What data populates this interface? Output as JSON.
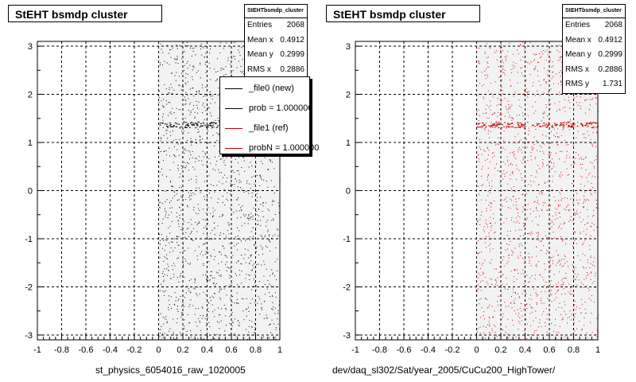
{
  "charts": [
    {
      "title": "StEHT bsmdp cluster",
      "stats": {
        "name": "StEHTbsmdp_cluster",
        "rows": [
          {
            "label": "Entries",
            "value": "2068"
          },
          {
            "label": "Mean x",
            "value": "0.4912"
          },
          {
            "label": "Mean y",
            "value": "0.2999"
          },
          {
            "label": "RMS x",
            "value": "0.2886"
          }
        ]
      },
      "legend": [
        {
          "label": "_file0 (new)",
          "color": "#000000"
        },
        {
          "label": "prob = 1.000000",
          "color": "#000000"
        },
        {
          "label": "_file1 (ref)",
          "color": "#cc0000"
        },
        {
          "label": "probN = 1.000000",
          "color": "#cc0000"
        }
      ],
      "xtitle": "st_physics_6054016_raw_1020005",
      "marker_color": "#000000"
    },
    {
      "title": "StEHT bsmdp cluster",
      "stats": {
        "name": "StEHTbsmdp_cluster",
        "rows": [
          {
            "label": "Entries",
            "value": "2068"
          },
          {
            "label": "Mean x",
            "value": "0.4912"
          },
          {
            "label": "Mean y",
            "value": "0.2999"
          },
          {
            "label": "RMS x",
            "value": "0.2886"
          },
          {
            "label": "RMS y",
            "value": "1.731"
          }
        ]
      },
      "xtitle": "dev/daq_sl302/Sat/year_2005/CuCu200_HighTower/",
      "marker_color": "#cc0000"
    }
  ],
  "chart_data": [
    {
      "type": "scatter",
      "title": "StEHT bsmdp cluster",
      "xlim": [
        -1,
        1
      ],
      "ylim": [
        -3.1,
        3.1
      ],
      "x_ticks": [
        "-1",
        "-0.8",
        "-0.6",
        "-0.4",
        "-0.2",
        "0",
        "0.2",
        "0.4",
        "0.6",
        "0.8",
        "1"
      ],
      "y_ticks": [
        "3",
        "2",
        "1",
        "0",
        "-1",
        "-2",
        "-3"
      ],
      "grid": true,
      "legend_position": "top-right",
      "series": [
        {
          "name": "_file0 (new)",
          "color": "#000000",
          "x_range": [
            0,
            1
          ],
          "y_range": [
            -3.1,
            3.1
          ],
          "entries": 2068,
          "band_y": 1.37
        }
      ]
    },
    {
      "type": "scatter",
      "title": "StEHT bsmdp cluster",
      "xlim": [
        -1,
        1
      ],
      "ylim": [
        -3.1,
        3.1
      ],
      "x_ticks": [
        "-1",
        "-0.8",
        "-0.6",
        "-0.4",
        "-0.2",
        "0",
        "0.2",
        "0.4",
        "0.6",
        "0.8",
        "1"
      ],
      "y_ticks": [
        "3",
        "2",
        "1",
        "0",
        "-1",
        "-2",
        "-3"
      ],
      "grid": true,
      "series": [
        {
          "name": "_file1 (ref)",
          "color": "#cc0000",
          "x_range": [
            0,
            1
          ],
          "y_range": [
            -3.1,
            3.1
          ],
          "entries": 2068,
          "band_y": 1.37
        }
      ]
    }
  ]
}
